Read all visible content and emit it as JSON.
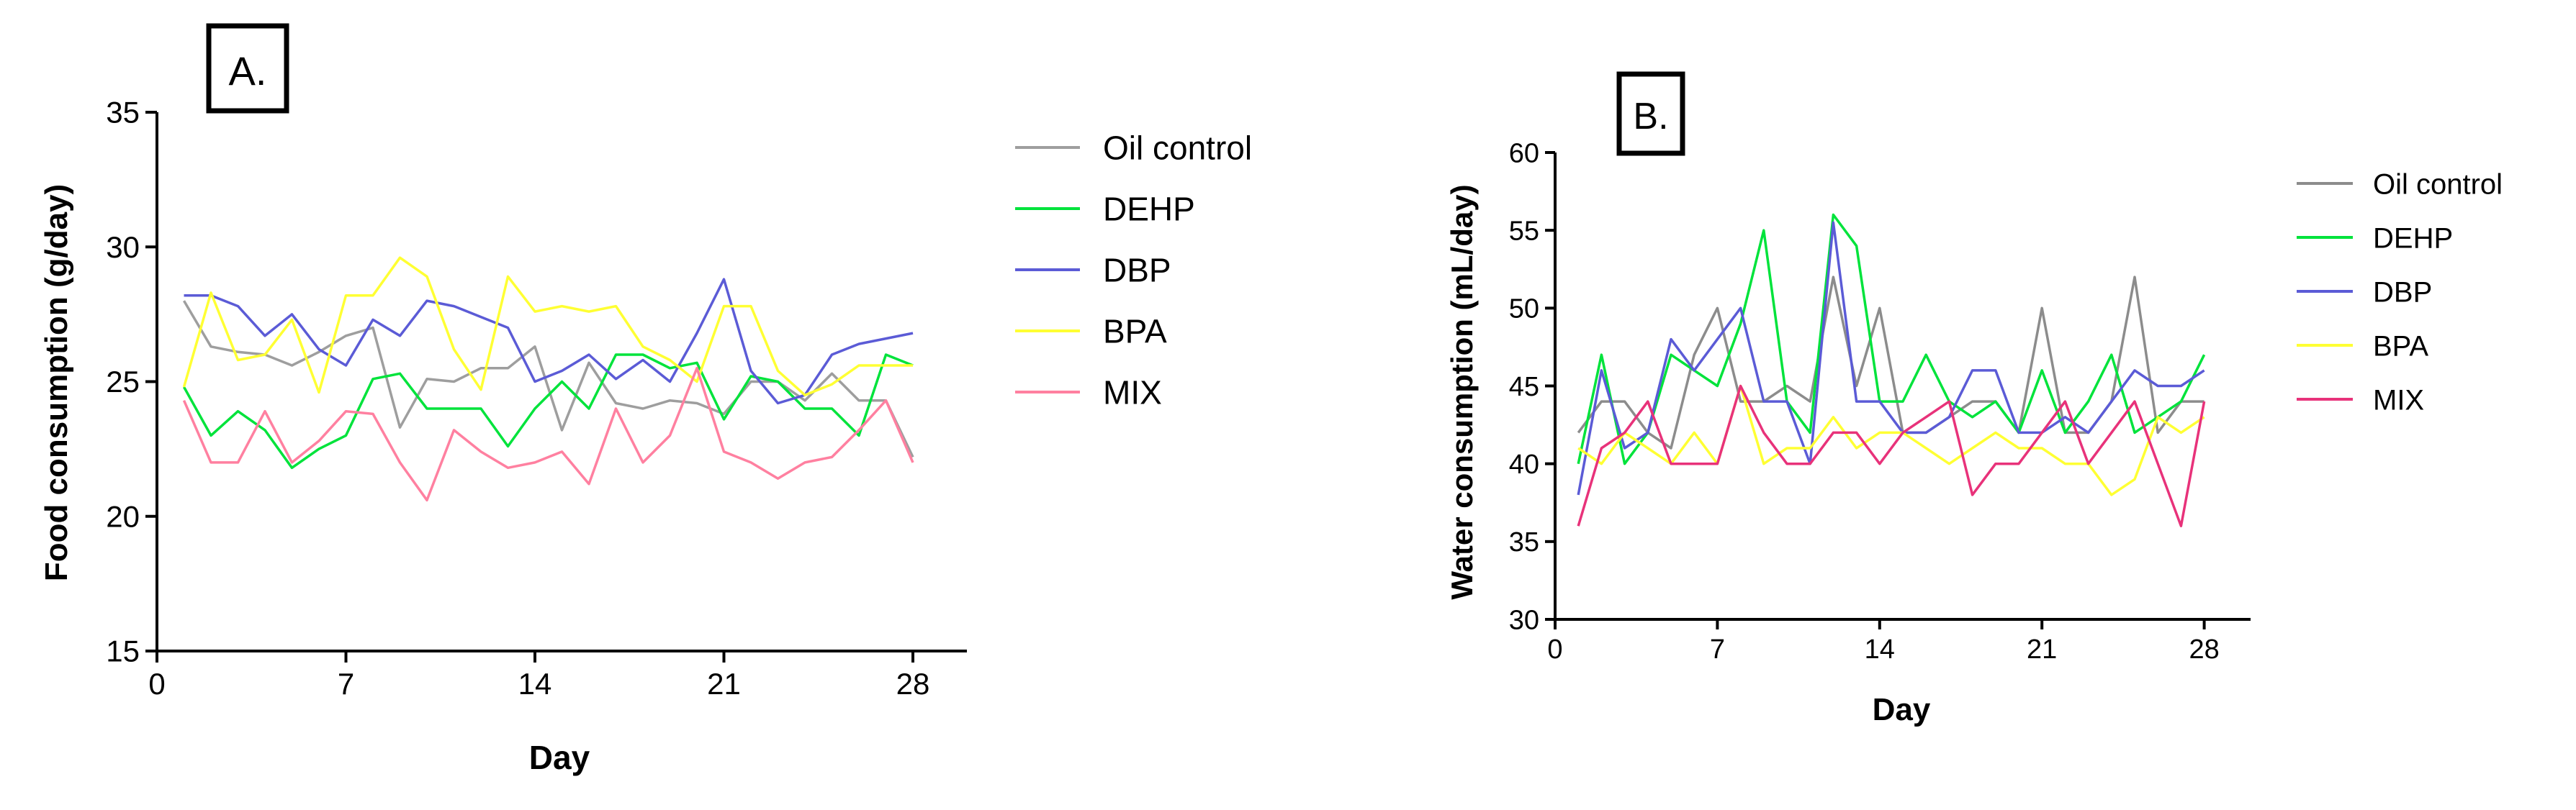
{
  "chart_data": [
    {
      "id": "A",
      "type": "line",
      "panel_label": "A.",
      "xlabel": "Day",
      "ylabel": "Food consumption (g/day)",
      "xlim": [
        0,
        30
      ],
      "ylim": [
        15,
        35
      ],
      "xticks": [
        "0",
        "7",
        "14",
        "21",
        "28"
      ],
      "yticks": [
        "15",
        "20",
        "25",
        "30",
        "35"
      ],
      "x": [
        1,
        2,
        3,
        4,
        5,
        6,
        7,
        8,
        9,
        10,
        11,
        12,
        13,
        14,
        15,
        16,
        17,
        18,
        19,
        20,
        21,
        22,
        23,
        24,
        25,
        26,
        27,
        28
      ],
      "series": [
        {
          "name": "Oil control",
          "color": "#9e9e9e",
          "values": [
            28,
            26.3,
            26.1,
            26,
            25.6,
            26.1,
            26.7,
            27,
            23.3,
            25.1,
            25,
            25.5,
            25.5,
            26.3,
            23.2,
            25.7,
            24.2,
            24,
            24.3,
            24.2,
            23.8,
            25,
            25,
            24.3,
            25.3,
            24.3,
            24.3,
            22.2
          ]
        },
        {
          "name": "DEHP",
          "color": "#00e33b",
          "values": [
            24.8,
            23,
            23.9,
            23.2,
            21.8,
            22.5,
            23,
            25.1,
            25.3,
            24,
            24,
            24,
            22.6,
            24,
            25,
            24,
            26,
            26,
            25.5,
            25.7,
            23.6,
            25.2,
            25,
            24,
            24,
            23,
            26,
            25.6
          ]
        },
        {
          "name": "DBP",
          "color": "#5b5bd6",
          "values": [
            28.2,
            28.2,
            27.8,
            26.7,
            27.5,
            26.2,
            25.6,
            27.3,
            26.7,
            28,
            27.8,
            27.4,
            27,
            25,
            25.4,
            26,
            25.1,
            25.8,
            25,
            26.8,
            28.8,
            25.4,
            24.2,
            24.5,
            26,
            26.4,
            26.6,
            26.8
          ]
        },
        {
          "name": "BPA",
          "color": "#ffff33",
          "values": [
            24.8,
            28.3,
            25.8,
            26,
            27.3,
            24.6,
            28.2,
            28.2,
            29.6,
            28.9,
            26.2,
            24.7,
            28.9,
            27.6,
            27.8,
            27.6,
            27.8,
            26.3,
            25.8,
            25,
            27.8,
            27.8,
            25.4,
            24.5,
            24.9,
            25.6,
            25.6,
            25.6
          ]
        },
        {
          "name": "MIX",
          "color": "#ff80a0",
          "values": [
            24.3,
            22,
            22,
            23.9,
            22,
            22.8,
            23.9,
            23.8,
            22,
            20.6,
            23.2,
            22.4,
            21.8,
            22,
            22.4,
            21.2,
            24,
            22,
            23,
            25.5,
            22.4,
            22,
            21.4,
            22,
            22.2,
            23.2,
            24.3,
            22
          ]
        }
      ]
    },
    {
      "id": "B",
      "type": "line",
      "panel_label": "B.",
      "xlabel": "Day",
      "ylabel": "Water consumption (mL/day)",
      "xlim": [
        0,
        30
      ],
      "ylim": [
        30,
        60
      ],
      "xticks": [
        "0",
        "7",
        "14",
        "21",
        "28"
      ],
      "yticks": [
        "30",
        "35",
        "40",
        "45",
        "50",
        "55",
        "60"
      ],
      "x": [
        1,
        2,
        3,
        4,
        5,
        6,
        7,
        8,
        9,
        10,
        11,
        12,
        13,
        14,
        15,
        16,
        17,
        18,
        19,
        20,
        21,
        22,
        23,
        24,
        25,
        26,
        27,
        28
      ],
      "series": [
        {
          "name": "Oil control",
          "color": "#8c8c8c",
          "values": [
            42,
            44,
            44,
            42,
            41,
            47,
            50,
            44,
            44,
            45,
            44,
            52,
            45,
            50,
            42,
            42,
            43,
            44,
            44,
            42,
            50,
            42,
            42,
            44,
            52,
            42,
            44,
            44
          ]
        },
        {
          "name": "DEHP",
          "color": "#00e33b",
          "values": [
            40,
            47,
            40,
            42,
            47,
            46,
            45,
            49,
            55,
            44,
            42,
            56,
            54,
            44,
            44,
            47,
            44,
            43,
            44,
            42,
            46,
            42,
            44,
            47,
            42,
            43,
            44,
            47
          ]
        },
        {
          "name": "DBP",
          "color": "#5b5bd6",
          "values": [
            38,
            46,
            41,
            42,
            48,
            46,
            48,
            50,
            44,
            44,
            40,
            55.5,
            44,
            44,
            42,
            42,
            43,
            46,
            46,
            42,
            42,
            43,
            42,
            44,
            46,
            45,
            45,
            46
          ]
        },
        {
          "name": "BPA",
          "color": "#ffff33",
          "values": [
            41,
            40,
            42,
            41,
            40,
            42,
            40,
            45,
            40,
            41,
            41,
            43,
            41,
            42,
            42,
            41,
            40,
            41,
            42,
            41,
            41,
            40,
            40,
            38,
            39,
            43,
            42,
            43
          ]
        },
        {
          "name": "MIX",
          "color": "#e8327a",
          "values": [
            36,
            41,
            42,
            44,
            40,
            40,
            40,
            45,
            42,
            40,
            40,
            42,
            42,
            40,
            42,
            43,
            44,
            38,
            40,
            40,
            42,
            44,
            40,
            42,
            44,
            40,
            36,
            44
          ]
        }
      ]
    }
  ]
}
